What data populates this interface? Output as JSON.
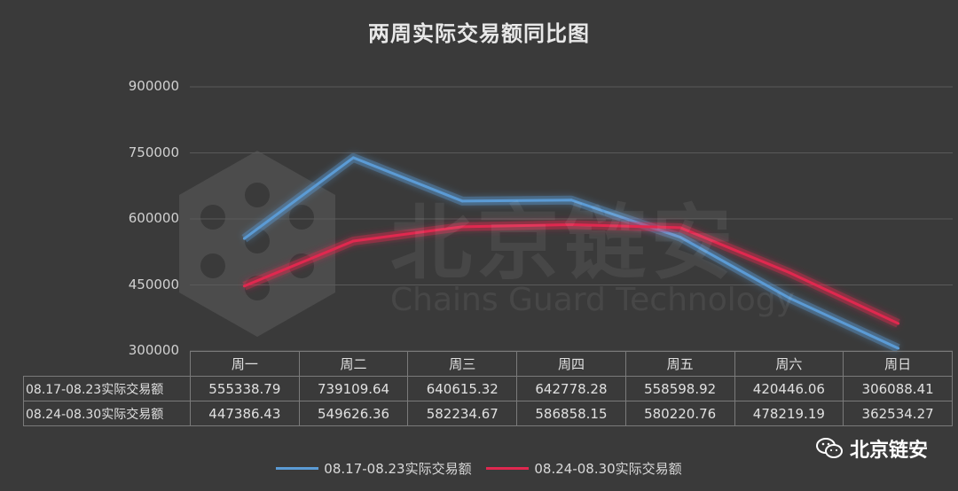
{
  "chart_data": {
    "type": "line",
    "title": "两周实际交易额同比图",
    "categories": [
      "周一",
      "周二",
      "周三",
      "周四",
      "周五",
      "周六",
      "周日"
    ],
    "ylim": [
      300000,
      900000
    ],
    "yticks": [
      "900000",
      "750000",
      "600000",
      "450000",
      "300000"
    ],
    "grid": true,
    "legend_position": "bottom",
    "series": [
      {
        "name": "08.17-08.23实际交易额",
        "color": "#5b9bd5",
        "values": [
          555338.79,
          739109.64,
          640615.32,
          642778.28,
          558598.92,
          420446.06,
          306088.41
        ],
        "labels": [
          "555338.79",
          "739109.64",
          "640615.32",
          "642778.28",
          "558598.92",
          "420446.06",
          "306088.41"
        ]
      },
      {
        "name": "08.24-08.30实际交易额",
        "color": "#e0284f",
        "values": [
          447386.43,
          549626.36,
          582234.67,
          586858.15,
          580220.76,
          478219.19,
          362534.27
        ],
        "labels": [
          "447386.43",
          "549626.36",
          "582234.67",
          "586858.15",
          "580220.76",
          "478219.19",
          "362534.27"
        ]
      }
    ]
  },
  "watermark": {
    "text": "北京链安",
    "subtext": "Chains Guard Technology",
    "icon": "hexagon-molecule-icon"
  },
  "brand": {
    "text": "北京链安",
    "icon": "wechat-icon"
  }
}
